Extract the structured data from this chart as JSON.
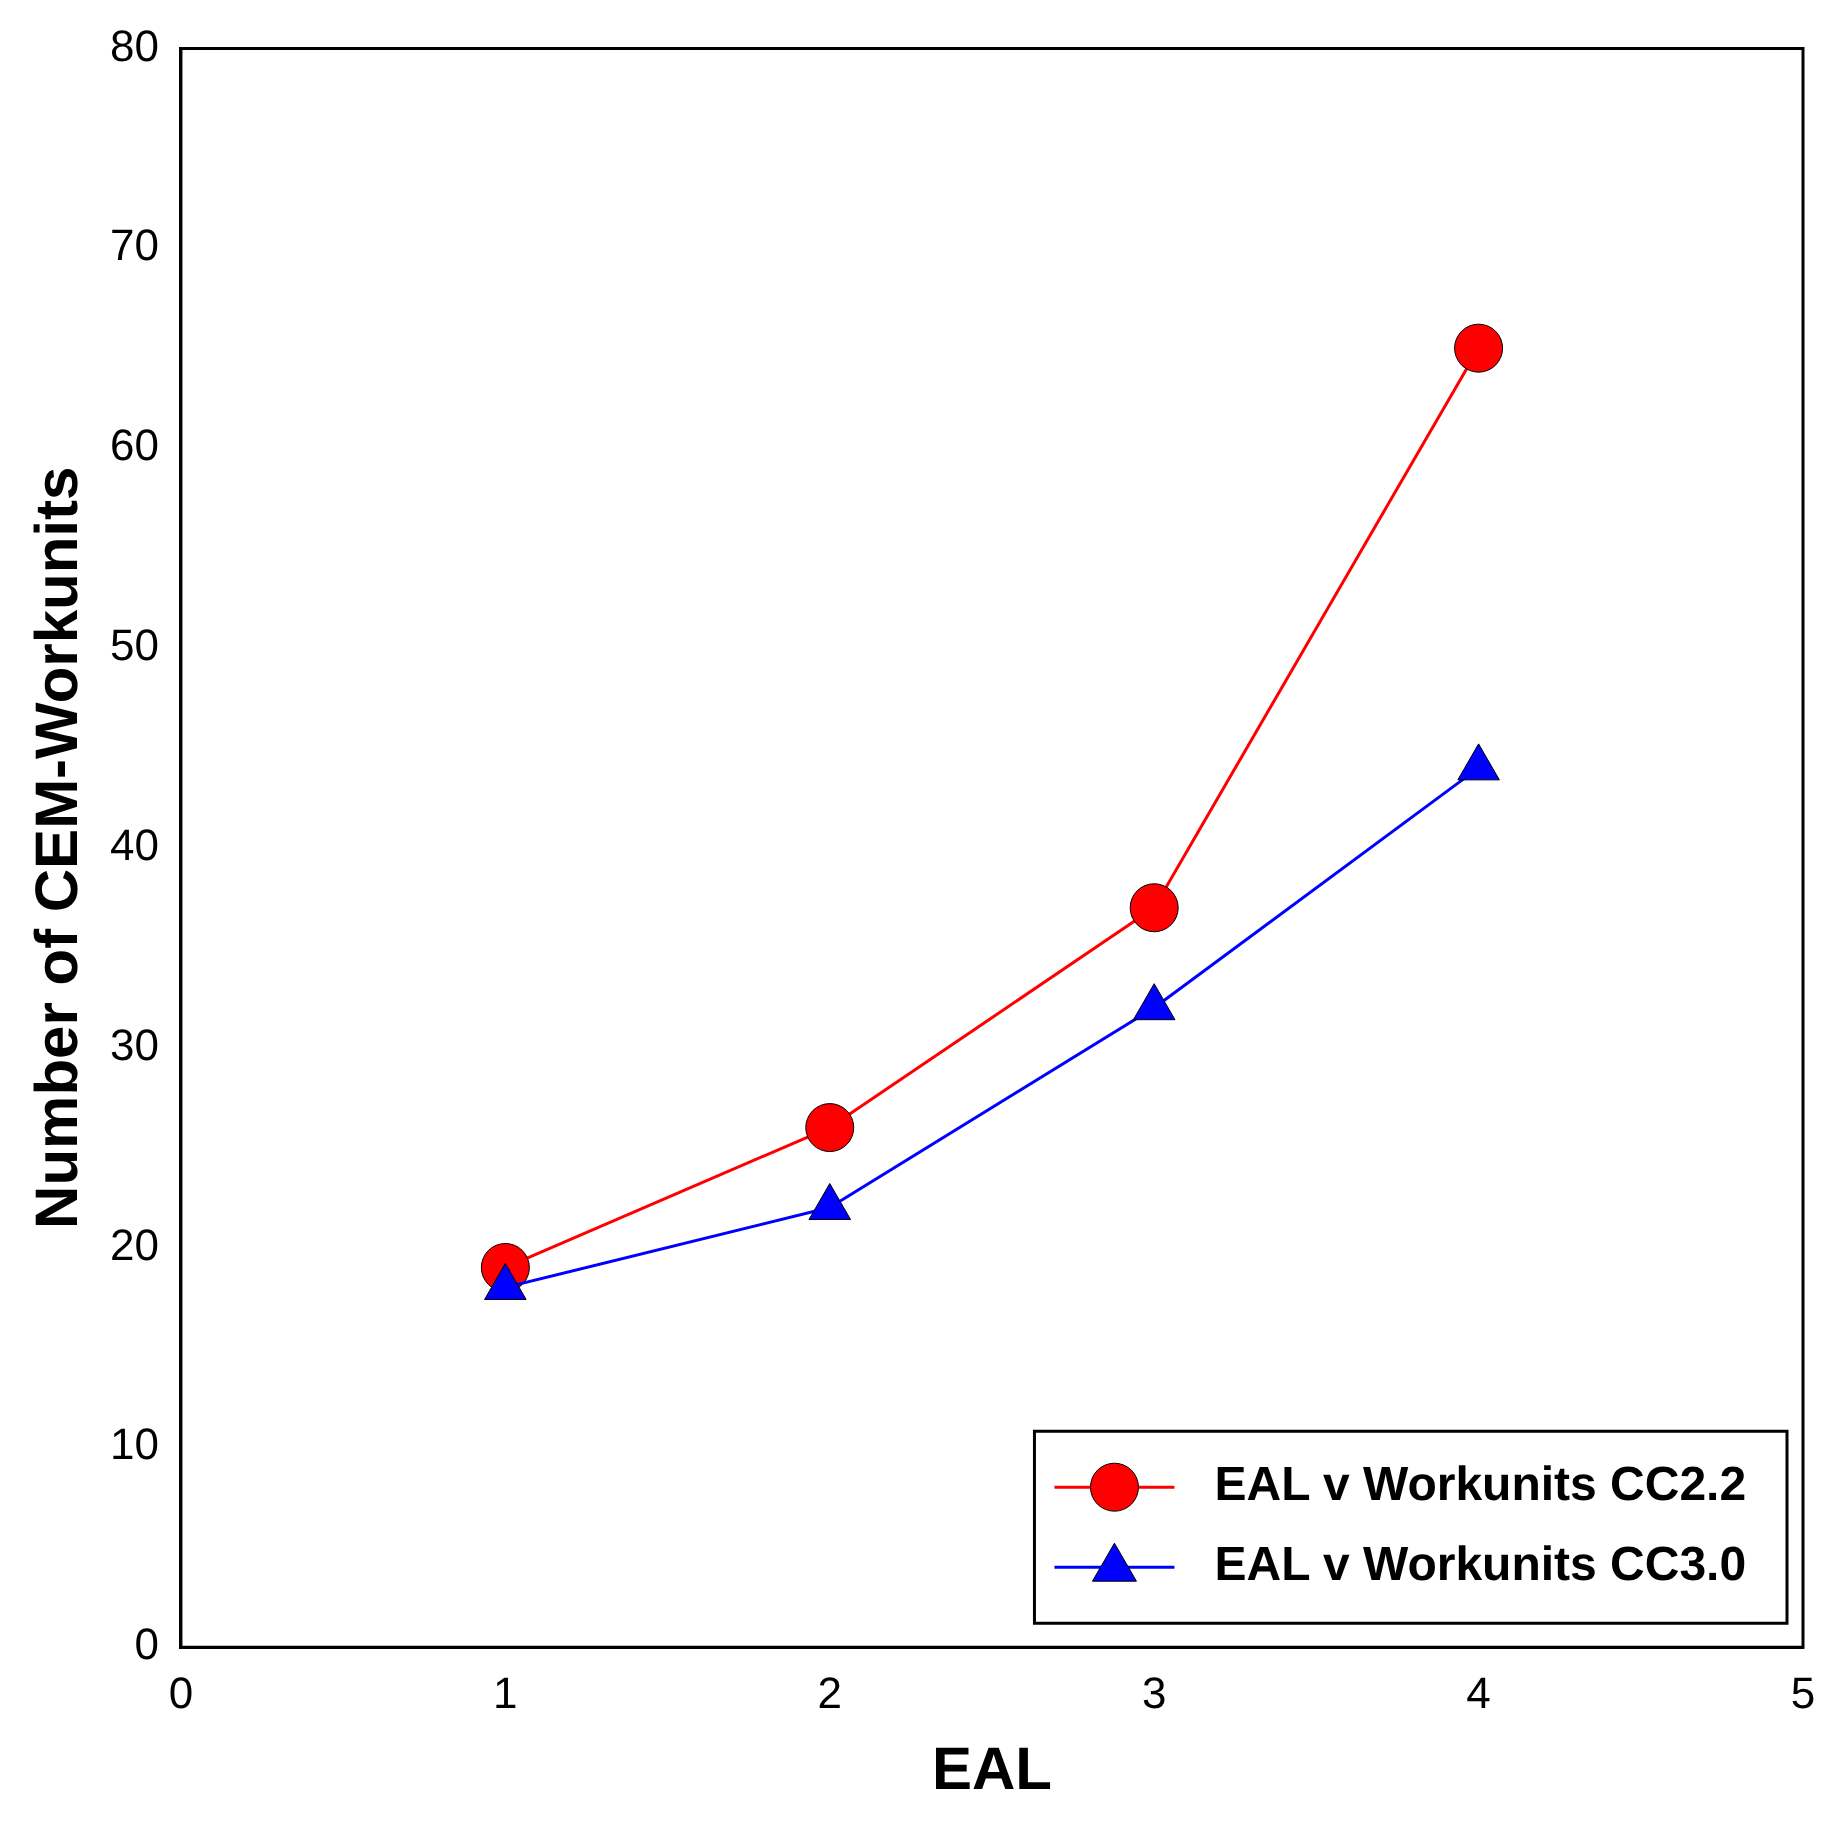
{
  "chart_data": {
    "type": "line",
    "xlabel": "EAL",
    "ylabel": "Number of CEM-Workunits",
    "x": [
      1,
      2,
      3,
      4
    ],
    "xlim": [
      0,
      5
    ],
    "xticks": [
      0,
      1,
      2,
      3,
      4,
      5
    ],
    "ylim": [
      0,
      80
    ],
    "yticks": [
      0,
      10,
      20,
      30,
      40,
      50,
      60,
      70,
      80
    ],
    "grid": false,
    "legend": "bottom right",
    "line_style": "solid",
    "series": [
      {
        "name": "EAL v Workunits CC2.2",
        "color": "#ff0000",
        "marker": "circle",
        "values": [
          19,
          26,
          37,
          65
        ]
      },
      {
        "name": "EAL v Workunits CC3.0",
        "color": "#0000ff",
        "marker": "triangle",
        "values": [
          18,
          22,
          32,
          44
        ]
      }
    ]
  }
}
